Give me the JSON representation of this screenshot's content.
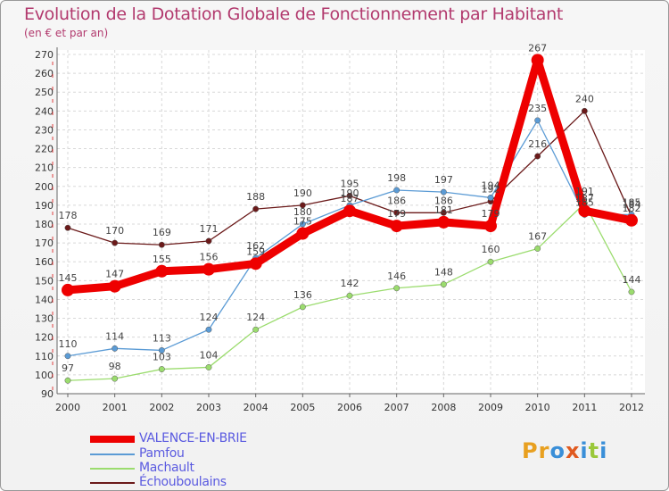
{
  "chart_data": {
    "type": "line",
    "title": "Evolution de la Dotation Globale de Fonctionnement par Habitant",
    "subtitle": "(en € et par an)",
    "categories": [
      "2000",
      "2001",
      "2002",
      "2003",
      "2004",
      "2005",
      "2006",
      "2007",
      "2008",
      "2009",
      "2010",
      "2011",
      "2012"
    ],
    "ylim": [
      90,
      270
    ],
    "yticks": [
      90,
      100,
      110,
      120,
      130,
      140,
      150,
      160,
      170,
      180,
      190,
      200,
      210,
      220,
      230,
      240,
      250,
      260,
      270
    ],
    "series": [
      {
        "name": "VALENCE-EN-BRIE",
        "color": "#ee0000",
        "values": [
          145,
          147,
          155,
          156,
          159,
          175,
          187,
          179,
          181,
          179,
          267,
          187,
          182
        ]
      },
      {
        "name": "Pamfou",
        "color": "#5b9bd5",
        "values": [
          110,
          114,
          113,
          124,
          162,
          180,
          190,
          198,
          197,
          194,
          235,
          185,
          185
        ]
      },
      {
        "name": "Machault",
        "color": "#9bdc6e",
        "values": [
          97,
          98,
          103,
          104,
          124,
          136,
          142,
          146,
          148,
          160,
          167,
          191,
          144
        ]
      },
      {
        "name": "Échouboulains",
        "color": "#6b1a1a",
        "values": [
          178,
          170,
          169,
          171,
          188,
          190,
          195,
          186,
          186,
          192,
          216,
          240,
          184
        ]
      }
    ]
  },
  "logo": {
    "text": "Proxiti",
    "letters": [
      "P",
      "r",
      "o",
      "x",
      "i",
      "t",
      "i"
    ],
    "colors": [
      "#e8a020",
      "#e8a020",
      "#3a8fd8",
      "#e05a20",
      "#3a8fd8",
      "#9ac83a",
      "#3a8fd8"
    ]
  }
}
